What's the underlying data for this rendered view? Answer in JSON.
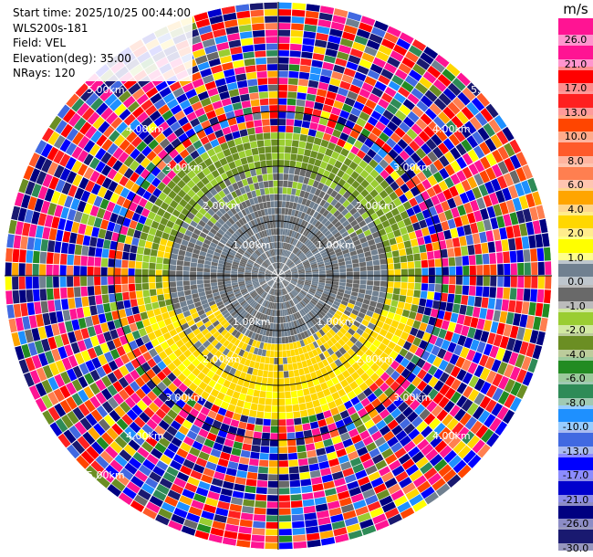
{
  "header": {
    "start_time": "Start time: 2025/10/25 00:44:00",
    "instrument": "WLS200s-181",
    "field": "Field: VEL",
    "elevation": "Elevation(deg): 35.00",
    "nrays": "NRays: 120"
  },
  "chart_data": {
    "type": "heatmap",
    "projection": "polar PPI",
    "field": "VEL",
    "elevation_deg": 35.0,
    "n_rays": 120,
    "range_rings_km": [
      1.0,
      2.0,
      3.0,
      4.0,
      5.0
    ],
    "range_labels": {
      "r1": "1.00km",
      "r2": "2.00km",
      "r3": "3.00km",
      "r4": "4.00km",
      "r5": "5.00km"
    },
    "max_range_km": 5.0,
    "gates_per_ray": 40,
    "radial_velocity_pattern": [
      {
        "range_km": [
          0.0,
          1.0
        ],
        "values_ms": "-1.0 to 1.0",
        "description": "grey near zero"
      },
      {
        "range_km": [
          1.0,
          2.0
        ],
        "values_ms": "-2.0 to 2.0",
        "description": "grey with yellow on south side, green to north"
      },
      {
        "range_km": [
          2.0,
          2.6
        ],
        "values_ms": "-4.0 to 4.0",
        "description": "yellow-green ring, strongest south"
      },
      {
        "range_km": [
          2.6,
          5.0
        ],
        "values_ms": "-30.0 to 30.0",
        "description": "noise"
      }
    ],
    "colorbar": {
      "unit": "m/s",
      "ticks": [
        26.0,
        21.0,
        17.0,
        13.0,
        10.0,
        8.0,
        6.0,
        4.0,
        2.0,
        1.0,
        0.0,
        -1.0,
        -2.0,
        -4.0,
        -6.0,
        -8.0,
        -10.0,
        -13.0,
        -17.0,
        -21.0,
        -26.0,
        -30.0
      ],
      "tick_labels": [
        "26.0",
        "21.0",
        "17.0",
        "13.0",
        "10.0",
        "8.0",
        "6.0",
        "4.0",
        "2.0",
        "1.0",
        "0.0",
        "-1.0",
        "-2.0",
        "-4.0",
        "-6.0",
        "-8.0",
        "-10.0",
        "-13.0",
        "-17.0",
        "-21.0",
        "-26.0",
        "-30.0"
      ],
      "colors": [
        "#ff1493",
        "#ff1493",
        "#ff0000",
        "#ff2020",
        "#ff4500",
        "#ff5a2a",
        "#ff7f50",
        "#ffa500",
        "#ffd700",
        "#ffff00",
        "#708090",
        "#696969",
        "#9acd32",
        "#6b8e23",
        "#228b22",
        "#2e8b57",
        "#1e90ff",
        "#4169e1",
        "#0000ff",
        "#0000cd",
        "#000080",
        "#191970"
      ]
    }
  }
}
